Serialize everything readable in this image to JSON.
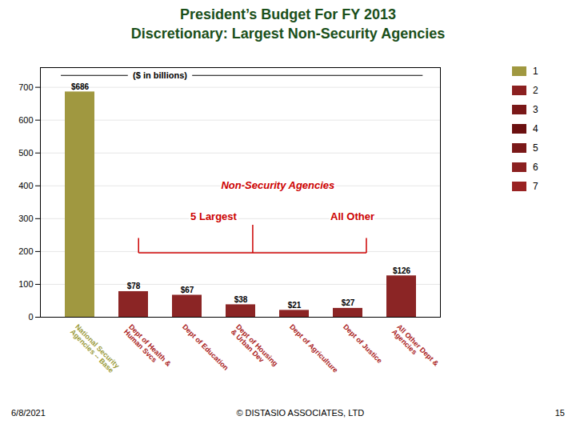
{
  "chart_data": {
    "type": "bar",
    "title": "President’s Budget For FY 2013",
    "subtitle": "Discretionary: Largest Non-Security Agencies",
    "title_color": "#1a4f1a",
    "categories": [
      "National Security\nAgencies -- Base",
      "Dept of Health &\nHuman Svcs",
      "Dept of Education",
      "Dept of Housing\n& Urban Dev",
      "Dept of Agriculture",
      "Dept of Justice",
      "All Other Dept &\nAgencies"
    ],
    "values": [
      686,
      78,
      67,
      38,
      21,
      27,
      126
    ],
    "value_labels": [
      "$686",
      "$78",
      "$67",
      "$38",
      "$21",
      "$27",
      "$126"
    ],
    "data_labels": true,
    "colors": [
      "#a09840",
      "#8B2525",
      "#8B2525",
      "#8B2525",
      "#8B2525",
      "#8B2525",
      "#8B2525"
    ],
    "category_label_colors": [
      "#9b9b3b",
      "#aa2222",
      "#aa2222",
      "#aa2222",
      "#aa2222",
      "#aa2222",
      "#aa2222"
    ],
    "ylim": [
      0,
      760
    ],
    "yticks": [
      0,
      100,
      200,
      300,
      400,
      500,
      600,
      700
    ],
    "grid": true,
    "legend": "right",
    "legend_entries": [
      {
        "name": "1",
        "color": "#a09840"
      },
      {
        "name": "2",
        "color": "#8B2020"
      },
      {
        "name": "3",
        "color": "#7a1818"
      },
      {
        "name": "4",
        "color": "#6b1010"
      },
      {
        "name": "5",
        "color": "#7a1818"
      },
      {
        "name": "6",
        "color": "#8B2020"
      },
      {
        "name": "7",
        "color": "#992222"
      }
    ],
    "annotations": [
      {
        "text": "($ in billions)"
      },
      {
        "text": "Non-Security Agencies",
        "color": "#cc0000"
      },
      {
        "text": "5 Largest",
        "color": "#cc0000"
      },
      {
        "text": "All Other",
        "color": "#cc0000"
      }
    ],
    "bracket_color": "#cc0000",
    "footer": {
      "left": "6/8/2021",
      "center": "© DISTASIO ASSOCIATES, LTD",
      "right": "15"
    }
  }
}
